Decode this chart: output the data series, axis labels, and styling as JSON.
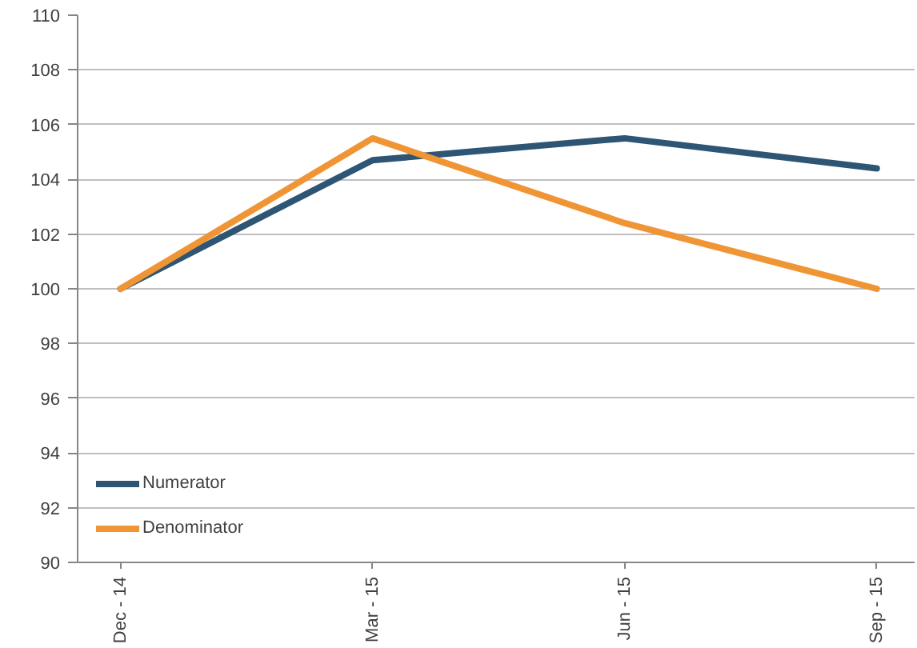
{
  "chart_data": {
    "type": "line",
    "categories": [
      "Dec - 14",
      "Mar - 15",
      "Jun - 15",
      "Sep - 15"
    ],
    "series": [
      {
        "name": "Numerator",
        "color": "#2e5573",
        "values": [
          100,
          104.7,
          105.5,
          104.4
        ]
      },
      {
        "name": "Denominator",
        "color": "#ef9535",
        "values": [
          100,
          105.5,
          102.4,
          100.0
        ]
      }
    ],
    "ylim": [
      90,
      110
    ],
    "yticks": [
      90,
      92,
      94,
      96,
      98,
      100,
      102,
      104,
      106,
      108,
      110
    ],
    "grid": "y",
    "legend": "bottom left",
    "line_style": "solid"
  }
}
